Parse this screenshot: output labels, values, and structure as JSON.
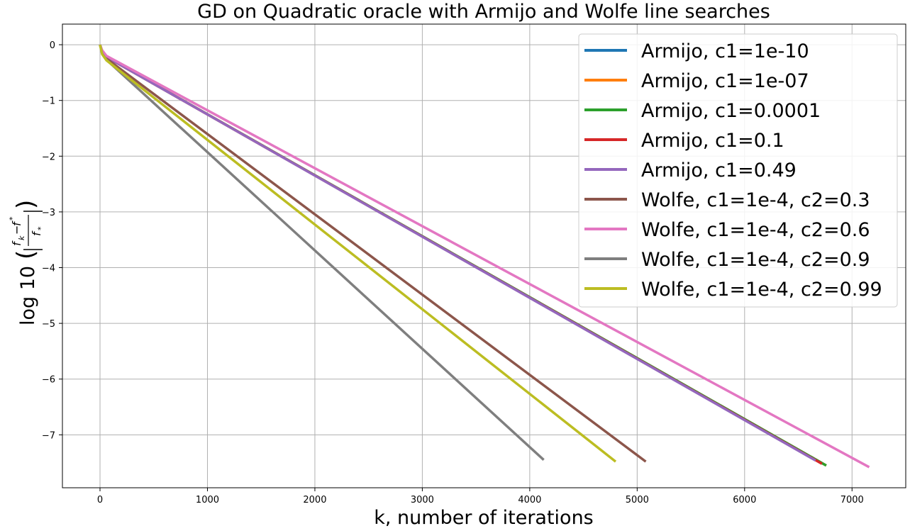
{
  "chart_data": {
    "type": "line",
    "title": "GD on Quadratic oracle with Armijo and Wolfe line searches",
    "xlabel": "k, number of iterations",
    "ylabel": {
      "prefix": "log 10",
      "numerator_f": "f",
      "numerator_k": "k",
      "numerator_minus": "−",
      "numerator_fstar": "f",
      "numerator_star": "*",
      "denominator_f": "f",
      "denominator_star": "*"
    },
    "xlim": [
      -350,
      7500
    ],
    "ylim": [
      -7.95,
      0.37
    ],
    "xticks": [
      0,
      1000,
      2000,
      3000,
      4000,
      5000,
      6000,
      7000
    ],
    "yticks": [
      0,
      -1,
      -2,
      -3,
      -4,
      -5,
      -6,
      -7
    ],
    "xtick_labels": [
      "0",
      "1000",
      "2000",
      "3000",
      "4000",
      "5000",
      "6000",
      "7000"
    ],
    "ytick_labels": [
      "0",
      "−1",
      "−2",
      "−3",
      "−4",
      "−5",
      "−6",
      "−7"
    ],
    "grid": true,
    "legend_position": "top-right",
    "series": [
      {
        "name": "Armijo, c1=1e-10",
        "color": "#1f77b4",
        "x": [
          0,
          20,
          60,
          6760
        ],
        "y": [
          0,
          -0.12,
          -0.22,
          -7.55
        ]
      },
      {
        "name": "Armijo, c1=1e-07",
        "color": "#ff7f0e",
        "x": [
          0,
          20,
          60,
          6760
        ],
        "y": [
          0,
          -0.12,
          -0.22,
          -7.55
        ]
      },
      {
        "name": "Armijo, c1=0.0001",
        "color": "#2ca02c",
        "x": [
          0,
          20,
          60,
          6760
        ],
        "y": [
          0,
          -0.12,
          -0.22,
          -7.55
        ]
      },
      {
        "name": "Armijo, c1=0.1",
        "color": "#d62728",
        "x": [
          0,
          20,
          60,
          6720
        ],
        "y": [
          0,
          -0.12,
          -0.22,
          -7.52
        ]
      },
      {
        "name": "Armijo, c1=0.49",
        "color": "#9467bd",
        "x": [
          0,
          20,
          60,
          6660
        ],
        "y": [
          0,
          -0.12,
          -0.22,
          -7.46
        ]
      },
      {
        "name": "Wolfe, c1=1e-4, c2=0.3",
        "color": "#8c564b",
        "x": [
          0,
          20,
          60,
          5080
        ],
        "y": [
          0,
          -0.14,
          -0.25,
          -7.48
        ]
      },
      {
        "name": "Wolfe, c1=1e-4, c2=0.6",
        "color": "#e377c2",
        "x": [
          0,
          20,
          60,
          7160
        ],
        "y": [
          0,
          -0.1,
          -0.2,
          -7.58
        ]
      },
      {
        "name": "Wolfe, c1=1e-4, c2=0.9",
        "color": "#7f7f7f",
        "x": [
          0,
          20,
          60,
          4130
        ],
        "y": [
          0,
          -0.16,
          -0.27,
          -7.45
        ]
      },
      {
        "name": "Wolfe, c1=1e-4, c2=0.99",
        "color": "#bcbd22",
        "x": [
          0,
          20,
          60,
          4800
        ],
        "y": [
          0,
          -0.17,
          -0.28,
          -7.48
        ]
      }
    ]
  }
}
